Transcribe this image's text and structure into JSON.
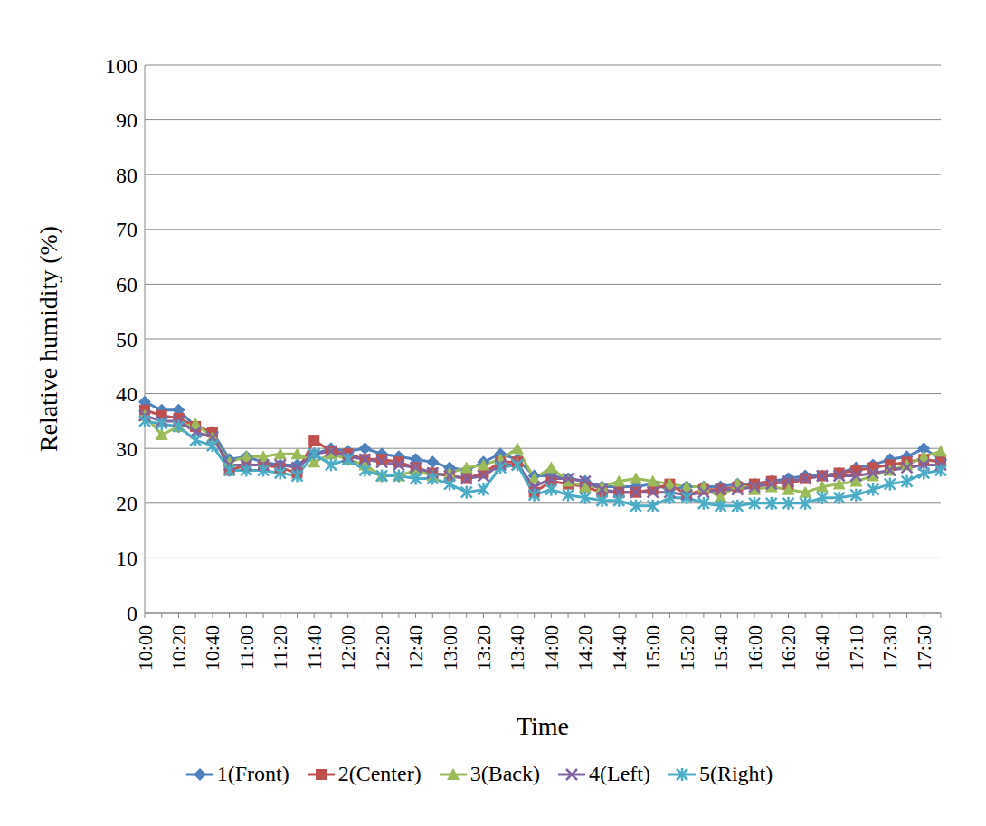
{
  "chart_data": {
    "type": "line",
    "x_label": "Time",
    "y_label": "Relative humidity (%)",
    "categories": [
      "10:00",
      null,
      "10:20",
      null,
      "10:40",
      null,
      "11:00",
      null,
      "11:20",
      null,
      "11:40",
      null,
      "12:00",
      null,
      "12:20",
      null,
      "12:40",
      null,
      "13:00",
      null,
      "13:20",
      null,
      "13:40",
      null,
      "14:00",
      null,
      "14:20",
      null,
      "14:40",
      null,
      "15:00",
      null,
      "15:20",
      null,
      "15:40",
      null,
      "16:00",
      null,
      "16:20",
      null,
      "16:40",
      null,
      "17:10",
      null,
      "17:30",
      null,
      "17:50",
      null
    ],
    "ylim": [
      0,
      100
    ],
    "yticks": [
      0,
      10,
      20,
      30,
      40,
      50,
      60,
      70,
      80,
      90,
      100
    ],
    "grid": true,
    "legend": "bottom",
    "series": [
      {
        "name": "1(Front)",
        "color": "#4f81bd",
        "marker": "diamond",
        "values": [
          38.5,
          37,
          37,
          34,
          33,
          28,
          28.5,
          27.5,
          27,
          27,
          29,
          30,
          29.5,
          30,
          29,
          28.5,
          28,
          27.5,
          26.5,
          26,
          27.5,
          29,
          28,
          25,
          25,
          24.5,
          24,
          23,
          23,
          23,
          23.5,
          22.5,
          23,
          23,
          23,
          23.5,
          23.5,
          24,
          24.5,
          25,
          25,
          25.5,
          26.5,
          27,
          28,
          28.5,
          30,
          28
        ]
      },
      {
        "name": "2(Center)",
        "color": "#c0504d",
        "marker": "square",
        "values": [
          37,
          36,
          35.5,
          34,
          33,
          26,
          27,
          27,
          26.5,
          25.5,
          31.5,
          29.5,
          29,
          28,
          28,
          27.5,
          26.5,
          25.5,
          25,
          24.5,
          25.5,
          27.5,
          27.5,
          22,
          24,
          23.5,
          23,
          22,
          22,
          22,
          22.5,
          23.5,
          21.5,
          22.5,
          22.5,
          23,
          23.5,
          24,
          23.5,
          24.5,
          25,
          25.5,
          26,
          26.5,
          27,
          27.5,
          28,
          27.5
        ]
      },
      {
        "name": "3(Back)",
        "color": "#9bbb59",
        "marker": "triangle",
        "values": [
          36,
          32.5,
          34,
          34.5,
          32,
          27.5,
          28.5,
          28.5,
          29,
          29,
          27.5,
          29,
          28,
          27,
          25,
          25,
          26,
          25,
          25.5,
          26.5,
          27,
          28,
          30,
          24.5,
          26.5,
          24,
          23,
          23,
          24,
          24.5,
          24,
          23.5,
          23,
          23,
          21,
          23.5,
          22.5,
          23,
          22.5,
          22,
          23,
          23.5,
          24,
          25,
          26,
          27,
          28.5,
          29.5
        ]
      },
      {
        "name": "4(Left)",
        "color": "#8064a2",
        "marker": "x",
        "values": [
          36,
          35,
          35,
          33,
          32,
          27,
          27,
          27,
          27,
          26.5,
          29,
          29.5,
          28.5,
          28,
          27.5,
          27,
          26.5,
          25.5,
          25,
          24.5,
          25,
          27,
          27,
          23,
          24.5,
          24.5,
          24,
          22.5,
          22,
          22,
          22,
          22,
          21.5,
          22,
          22.5,
          22.5,
          23,
          23.5,
          24,
          24.5,
          25,
          25,
          25,
          25.5,
          26,
          26.5,
          27,
          27
        ]
      },
      {
        "name": "5(Right)",
        "color": "#4bacc6",
        "marker": "star",
        "values": [
          35,
          34.5,
          34,
          31.5,
          30.5,
          26,
          26,
          26,
          25.5,
          25,
          29,
          27,
          28,
          26,
          25,
          25,
          24.5,
          24.5,
          23.5,
          22,
          22.5,
          26.5,
          27,
          21.5,
          22.5,
          21.5,
          21,
          20.5,
          20.5,
          19.5,
          19.5,
          21,
          21,
          20,
          19.5,
          19.5,
          20,
          20,
          20,
          20,
          21,
          21,
          21.5,
          22.5,
          23.5,
          24,
          25.5,
          26
        ]
      }
    ]
  }
}
